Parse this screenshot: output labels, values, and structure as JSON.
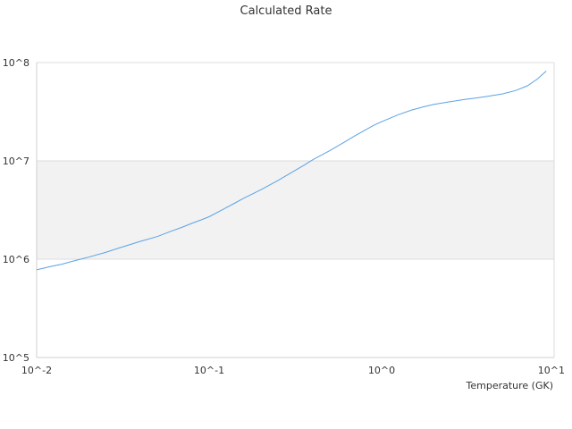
{
  "chart_data": {
    "type": "line",
    "title": "Calculated Rate",
    "xlabel": "Temperature (GK)",
    "ylabel": "",
    "x_scale": "log",
    "y_scale": "log",
    "xlim": [
      0.01,
      10
    ],
    "ylim": [
      100000,
      100000000
    ],
    "x_ticks": [
      "10^-2",
      "10^-1",
      "10^0",
      "10^1"
    ],
    "y_ticks": [
      "10^5",
      "10^6",
      "10^7",
      "10^8"
    ],
    "band": {
      "from": 1000000,
      "to": 10000000,
      "color": "#f2f2f2"
    },
    "legend": "none",
    "grid": "horizontal",
    "series": [
      {
        "color": "#5aa2e6",
        "x": [
          0.01,
          0.012,
          0.014,
          0.016,
          0.018,
          0.02,
          0.025,
          0.03,
          0.04,
          0.05,
          0.06,
          0.07,
          0.08,
          0.09,
          0.1,
          0.12,
          0.14,
          0.16,
          0.18,
          0.2,
          0.25,
          0.3,
          0.35,
          0.4,
          0.45,
          0.5,
          0.6,
          0.7,
          0.8,
          0.9,
          1.0,
          1.25,
          1.5,
          1.75,
          2.0,
          2.5,
          3.0,
          3.5,
          4.0,
          5.0,
          6.0,
          7.0,
          8.0,
          9.0
        ],
        "y": [
          780000,
          840000,
          890000,
          950000,
          1000000,
          1050000,
          1170000,
          1300000,
          1520000,
          1700000,
          1920000,
          2120000,
          2330000,
          2510000,
          2700000,
          3200000,
          3700000,
          4200000,
          4650000,
          5100000,
          6300000,
          7600000,
          8900000,
          10300000,
          11500000,
          12700000,
          15300000,
          18000000,
          20500000,
          23000000,
          25000000,
          29500000,
          33000000,
          35500000,
          37500000,
          40000000,
          42000000,
          43500000,
          45000000,
          48000000,
          52000000,
          58000000,
          68000000,
          82000000
        ]
      }
    ]
  }
}
